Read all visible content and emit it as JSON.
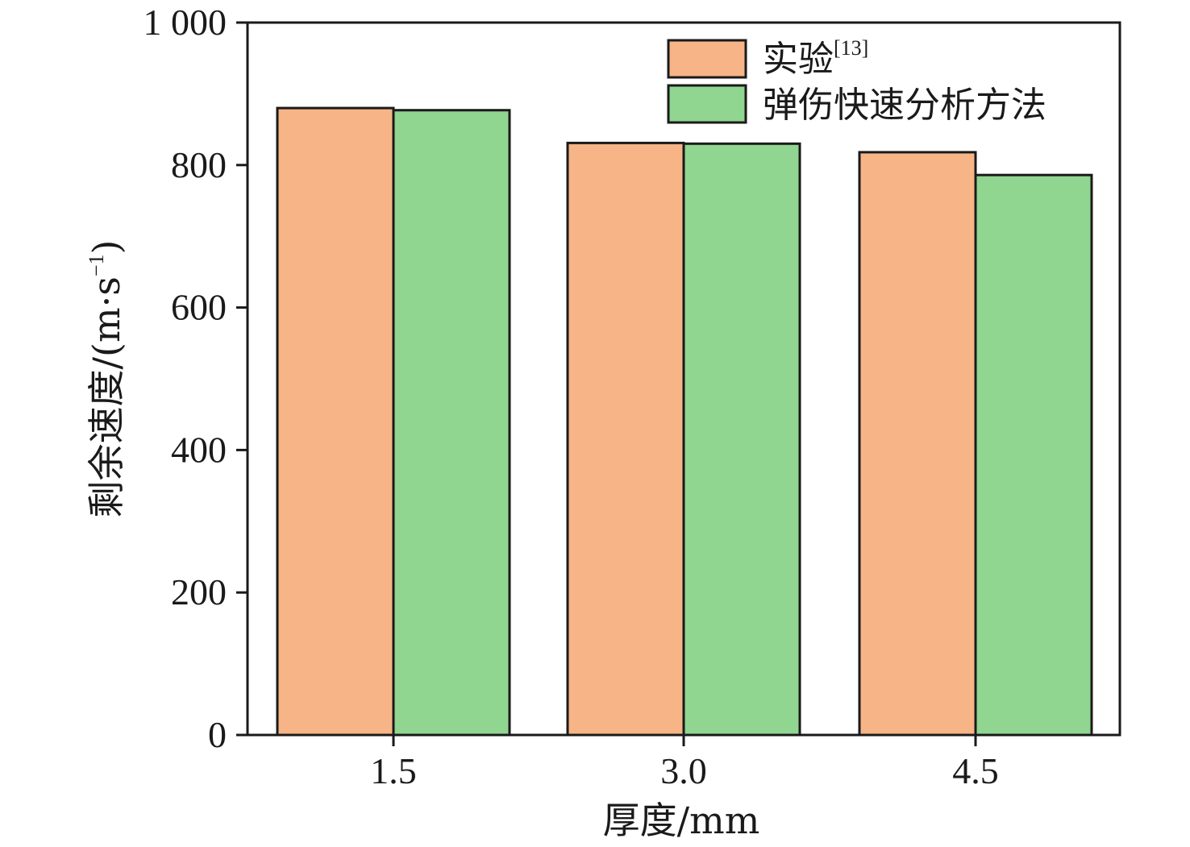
{
  "chart_data": {
    "type": "bar",
    "categories": [
      "1.5",
      "3.0",
      "4.5"
    ],
    "series": [
      {
        "name": "实验",
        "name_sup": "[13]",
        "values": [
          880,
          831,
          818
        ],
        "color": "#f7b487"
      },
      {
        "name": "弹伤快速分析方法",
        "values": [
          877,
          830,
          786
        ],
        "color": "#90d590"
      }
    ],
    "xlabel": "厚度/mm",
    "ylabel": {
      "prefix": "剩余速度/(m·s",
      "sup": "−1",
      "suffix": ")"
    },
    "ylim": [
      0,
      1000
    ],
    "yticks": [
      0,
      200,
      400,
      600,
      800,
      1000
    ],
    "ytick_labels": [
      "0",
      "200",
      "400",
      "600",
      "800",
      "1 000"
    ],
    "grid": false,
    "legend_position": "top-right"
  }
}
